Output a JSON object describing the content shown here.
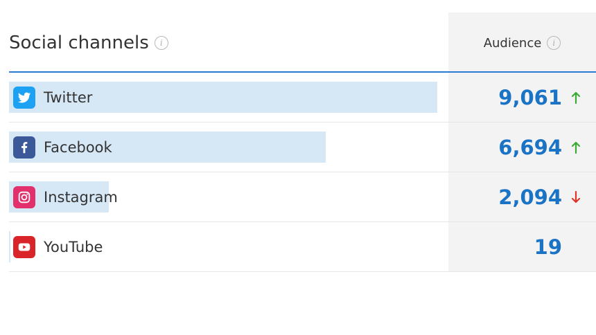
{
  "widget": {
    "title": "Social channels",
    "audience_header": "Audience",
    "colors": {
      "accent": "#1a73c4",
      "bar": "#d6e8f6",
      "trend_up": "#3aaa35",
      "trend_down": "#e0352b"
    }
  },
  "channels": [
    {
      "name": "Twitter",
      "icon": "twitter-icon",
      "icon_color": "#1da1f2",
      "audience": "9,061",
      "trend": "up",
      "share": 0.73
    },
    {
      "name": "Facebook",
      "icon": "facebook-icon",
      "icon_color": "#3b5998",
      "audience": "6,694",
      "trend": "up",
      "share": 0.54
    },
    {
      "name": "Instagram",
      "icon": "instagram-icon",
      "icon_color": "#e1306c",
      "audience": "2,094",
      "trend": "down",
      "share": 0.17
    },
    {
      "name": "YouTube",
      "icon": "youtube-icon",
      "icon_color": "#d9252a",
      "audience": "19",
      "trend": "none",
      "share": 0.002
    }
  ]
}
